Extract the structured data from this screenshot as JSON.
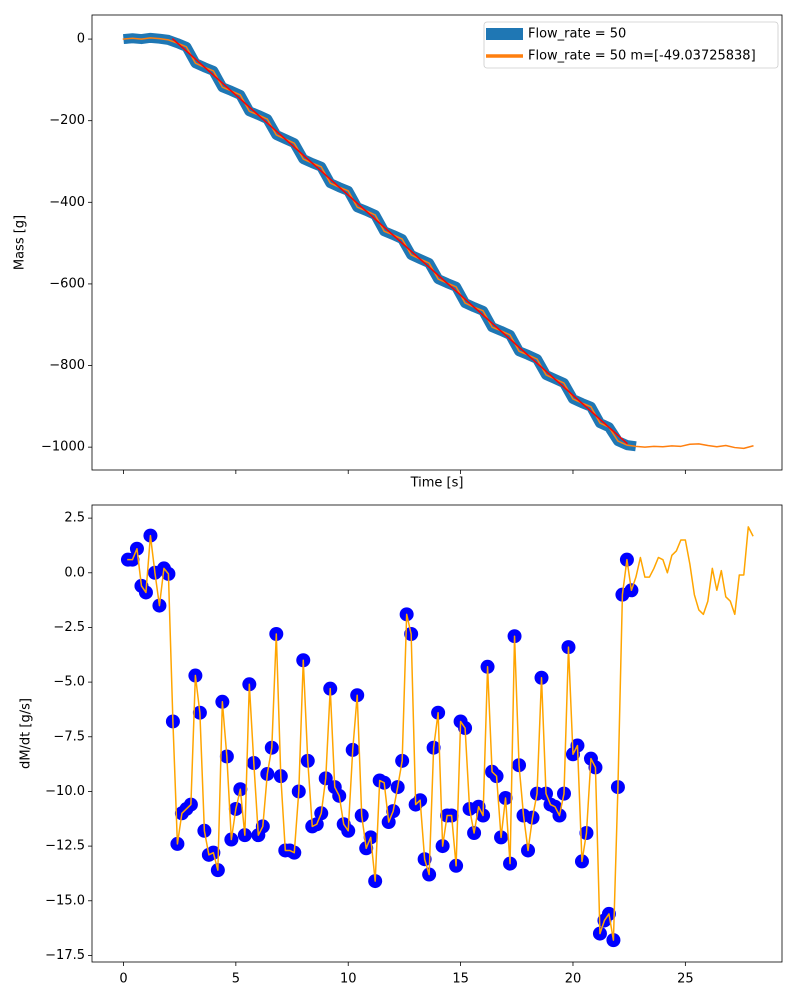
{
  "chart_data": [
    {
      "type": "line",
      "xlabel": "Time [s]",
      "ylabel": "Mass [g]",
      "xlim": [
        -1.4,
        29.3
      ],
      "ylim": [
        -1056,
        59
      ],
      "yticks": [
        0,
        {
          "value": -200,
          "label": "−200"
        },
        {
          "value": -400,
          "label": "−400"
        },
        {
          "value": -600,
          "label": "−600"
        },
        {
          "value": -800,
          "label": "−800"
        },
        {
          "value": -1000,
          "label": "−1000"
        }
      ],
      "legend": "upper right",
      "x": [
        0,
        0.4,
        0.8,
        1.2,
        1.6,
        2.0,
        2.4,
        2.8,
        3.2,
        3.6,
        4.0,
        4.4,
        4.8,
        5.2,
        5.6,
        6.0,
        6.4,
        6.8,
        7.2,
        7.6,
        8.0,
        8.4,
        8.8,
        9.2,
        9.6,
        10.0,
        10.4,
        10.8,
        11.2,
        11.6,
        12.0,
        12.4,
        12.8,
        13.2,
        13.6,
        14.0,
        14.4,
        14.8,
        15.2,
        15.6,
        16.0,
        16.4,
        16.8,
        17.2,
        17.6,
        18.0,
        18.4,
        18.8,
        19.2,
        19.6,
        20.0,
        20.4,
        20.8,
        21.2,
        21.6,
        22.0,
        22.4,
        22.8,
        23.2,
        23.6,
        24.0,
        24.4,
        24.8,
        25.2,
        25.6,
        26.0,
        26.4,
        26.8,
        27.2,
        27.6,
        28.0
      ],
      "series": [
        {
          "name": "Flow_rate = 50",
          "color": "#1f77b4",
          "values": [
            0,
            2,
            0,
            3,
            1,
            -2,
            -10,
            -19,
            -59,
            -69,
            -78,
            -118,
            -127,
            -137,
            -177,
            -186,
            -196,
            -235,
            -245,
            -255,
            -294,
            -304,
            -313,
            -353,
            -363,
            -372,
            -412,
            -421,
            -431,
            -471,
            -480,
            -490,
            -529,
            -539,
            -549,
            -588,
            -598,
            -607,
            -647,
            -657,
            -666,
            -706,
            -715,
            -725,
            -765,
            -774,
            -784,
            -823,
            -833,
            -843,
            -882,
            -892,
            -901,
            -941,
            -951,
            -985,
            -995,
            -998,
            null,
            null,
            null,
            null,
            null,
            null,
            null,
            null,
            null,
            null,
            null,
            null,
            null
          ]
        },
        {
          "name": "Flow_rate = 50 m=[-49.03725838]",
          "color": "#ff7f0e",
          "values": [
            0,
            2,
            0,
            3,
            1,
            -2,
            -10,
            -19,
            -59,
            -69,
            -78,
            -118,
            -127,
            -137,
            -177,
            -186,
            -196,
            -235,
            -245,
            -255,
            -294,
            -304,
            -313,
            -353,
            -363,
            -372,
            -412,
            -421,
            -431,
            -471,
            -480,
            -490,
            -529,
            -539,
            -549,
            -588,
            -598,
            -607,
            -647,
            -657,
            -666,
            -706,
            -715,
            -725,
            -765,
            -774,
            -784,
            -823,
            -833,
            -843,
            -882,
            -892,
            -901,
            -941,
            -951,
            -985,
            -995,
            -998,
            -1000,
            -998,
            -999,
            -997,
            -998,
            -993,
            -992,
            -996,
            -999,
            -996,
            -1001,
            -1003,
            -997
          ]
        },
        {
          "color": "#ff0000",
          "x": [
            2.2,
            22.4
          ],
          "values": [
            0,
            -990.5
          ]
        }
      ]
    },
    {
      "type": "scatter",
      "ylabel": "dM/dt [g/s]",
      "xlim": [
        -1.4,
        29.3
      ],
      "ylim": [
        -17.8,
        3.1
      ],
      "xticks": [
        0,
        5,
        10,
        15,
        20,
        25
      ],
      "yticks": [
        2.5,
        {
          "value": 0,
          "label": "0.0"
        },
        {
          "value": -2.5,
          "label": "−2.5"
        },
        {
          "value": -5,
          "label": "−5.0"
        },
        {
          "value": -7.5,
          "label": "−7.5"
        },
        {
          "value": -10,
          "label": "−10.0"
        },
        {
          "value": -12.5,
          "label": "−12.5"
        },
        {
          "value": -15,
          "label": "−15.0"
        },
        {
          "value": -17.5,
          "label": "−17.5"
        }
      ],
      "x": [
        0.2,
        0.4,
        0.6,
        0.8,
        1.0,
        1.2,
        1.4,
        1.6,
        1.8,
        2.0,
        2.2,
        2.4,
        2.6,
        2.8,
        3.0,
        3.2,
        3.4,
        3.6,
        3.8,
        4.0,
        4.2,
        4.4,
        4.6,
        4.8,
        5.0,
        5.2,
        5.4,
        5.6,
        5.8,
        6.0,
        6.2,
        6.4,
        6.6,
        6.8,
        7.0,
        7.2,
        7.4,
        7.6,
        7.8,
        8.0,
        8.2,
        8.4,
        8.6,
        8.8,
        9.0,
        9.2,
        9.4,
        9.6,
        9.8,
        10.0,
        10.2,
        10.4,
        10.6,
        10.8,
        11.0,
        11.2,
        11.4,
        11.6,
        11.8,
        12.0,
        12.2,
        12.4,
        12.6,
        12.8,
        13.0,
        13.2,
        13.4,
        13.6,
        13.8,
        14.0,
        14.2,
        14.4,
        14.6,
        14.8,
        15.0,
        15.2,
        15.4,
        15.6,
        15.8,
        16.0,
        16.2,
        16.4,
        16.6,
        16.8,
        17.0,
        17.2,
        17.4,
        17.6,
        17.8,
        18.0,
        18.2,
        18.4,
        18.6,
        18.8,
        19.0,
        19.2,
        19.4,
        19.6,
        19.8,
        20.0,
        20.2,
        20.4,
        20.6,
        20.8,
        21.0,
        21.2,
        21.4,
        21.6,
        21.8,
        22.0,
        22.2,
        22.4,
        22.6,
        22.8,
        23.0,
        23.2,
        23.4,
        23.6,
        23.8,
        24.0,
        24.2,
        24.4,
        24.6,
        24.8,
        25.0,
        25.2,
        25.4,
        25.6,
        25.8,
        26.0,
        26.2,
        26.4,
        26.6,
        26.8,
        27.0,
        27.2,
        27.4,
        27.6,
        27.8,
        28.0
      ],
      "series": [
        {
          "color": "#0000ff",
          "values": [
            0.6,
            0.6,
            1.1,
            -0.6,
            -0.9,
            1.7,
            0.0,
            -1.5,
            0.2,
            -0.05,
            -6.8,
            -12.4,
            -11.0,
            -10.8,
            -10.6,
            -4.7,
            -6.4,
            -11.8,
            -12.9,
            -12.8,
            -13.6,
            -5.9,
            -8.4,
            -12.2,
            -10.8,
            -9.9,
            -12.0,
            -5.1,
            -8.7,
            -12.0,
            -11.6,
            -9.2,
            -8.0,
            -2.8,
            -9.3,
            -12.7,
            -12.7,
            -12.8,
            -10.0,
            -4.0,
            -8.6,
            -11.6,
            -11.5,
            -11.0,
            -9.4,
            -5.3,
            -9.8,
            -10.2,
            -11.5,
            -11.8,
            -8.1,
            -5.6,
            -11.1,
            -12.6,
            -12.1,
            -14.1,
            -9.5,
            -9.6,
            -11.4,
            -10.9,
            -9.8,
            -8.6,
            -1.9,
            -2.8,
            -10.6,
            -10.4,
            -13.1,
            -13.8,
            -8.0,
            -6.4,
            -12.5,
            -11.1,
            -11.1,
            -13.4,
            -6.8,
            -7.1,
            -10.8,
            -11.9,
            -10.7,
            -11.1,
            -4.3,
            -9.1,
            -9.3,
            -12.1,
            -10.3,
            -13.3,
            -2.9,
            -8.8,
            -11.1,
            -12.7,
            -11.2,
            -10.1,
            -4.8,
            -10.1,
            -10.6,
            -10.7,
            -11.1,
            -10.1,
            -3.4,
            -8.3,
            -7.9,
            -13.2,
            -11.9,
            -8.5,
            -8.9,
            -16.5,
            -15.9,
            -15.6,
            -16.8,
            -9.8,
            -1.0,
            0.6,
            -0.8,
            null,
            null,
            null,
            null,
            null,
            null,
            null,
            null,
            null,
            null,
            null,
            null,
            null,
            null,
            null,
            null,
            null,
            null,
            null,
            null,
            null,
            null,
            null,
            null,
            null,
            null,
            null
          ]
        },
        {
          "type": "line",
          "color": "#ffa500",
          "values": [
            0.6,
            0.6,
            1.1,
            -0.6,
            -0.9,
            1.7,
            0.0,
            -1.5,
            0.2,
            -0.05,
            -6.8,
            -12.4,
            -11.0,
            -10.8,
            -10.6,
            -4.7,
            -6.4,
            -11.8,
            -12.9,
            -12.8,
            -13.6,
            -5.9,
            -8.4,
            -12.2,
            -10.8,
            -9.9,
            -12.0,
            -5.1,
            -8.7,
            -12.0,
            -11.6,
            -9.2,
            -8.0,
            -2.8,
            -9.3,
            -12.7,
            -12.7,
            -12.8,
            -10.0,
            -4.0,
            -8.6,
            -11.6,
            -11.5,
            -11.0,
            -9.4,
            -5.3,
            -9.8,
            -10.2,
            -11.5,
            -11.8,
            -8.1,
            -5.6,
            -11.1,
            -12.6,
            -12.1,
            -14.1,
            -9.5,
            -9.6,
            -11.4,
            -10.9,
            -9.8,
            -8.6,
            -1.9,
            -2.8,
            -10.6,
            -10.4,
            -13.1,
            -13.8,
            -8.0,
            -6.4,
            -12.5,
            -11.1,
            -11.1,
            -13.4,
            -6.8,
            -7.1,
            -10.8,
            -11.9,
            -10.7,
            -11.1,
            -4.3,
            -9.1,
            -9.3,
            -12.1,
            -10.3,
            -13.3,
            -2.9,
            -8.8,
            -11.1,
            -12.7,
            -11.2,
            -10.1,
            -4.8,
            -10.1,
            -10.6,
            -10.7,
            -11.1,
            -10.1,
            -3.4,
            -8.3,
            -7.9,
            -13.2,
            -11.9,
            -8.5,
            -8.9,
            -16.5,
            -15.9,
            -15.6,
            -16.8,
            -9.8,
            -1.0,
            0.6,
            -0.8,
            -0.2,
            0.7,
            -0.2,
            -0.2,
            0.2,
            0.7,
            0.6,
            0.0,
            0.8,
            1.0,
            1.5,
            1.5,
            0.4,
            -1.0,
            -1.7,
            -1.9,
            -1.3,
            0.2,
            -0.8,
            0.1,
            -1.1,
            -1.3,
            -1.9,
            -0.1,
            -0.1,
            2.1,
            1.7
          ]
        }
      ]
    }
  ]
}
